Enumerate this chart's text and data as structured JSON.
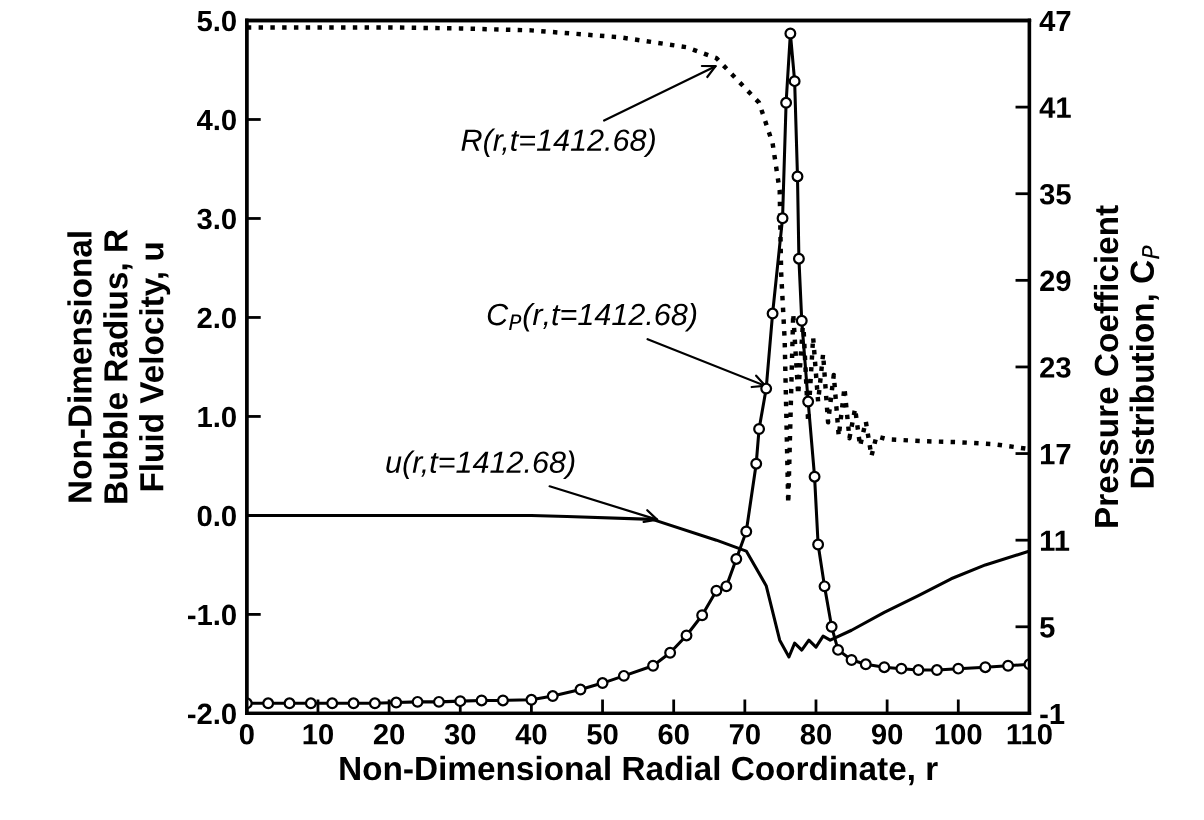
{
  "chart_data": {
    "type": "line",
    "xlabel": "Non-Dimensional Radial Coordinate, r",
    "ylabel": "Non-Dimensional\nBubble Radius, R\nFluid Velocity, u",
    "y2label": "Pressure Coefficient\nDistribution, C$_{P}$",
    "xlim": [
      0,
      110
    ],
    "xticks": [
      0,
      10,
      20,
      30,
      40,
      50,
      60,
      70,
      80,
      90,
      100,
      110
    ],
    "ylim": [
      -2,
      5
    ],
    "yticks": [
      {
        "value": -2,
        "label": "-2.0"
      },
      {
        "value": -1,
        "label": "-1.0"
      },
      {
        "value": 0,
        "label": "0.0"
      },
      {
        "value": 1,
        "label": "1.0"
      },
      {
        "value": 2,
        "label": "2.0"
      },
      {
        "value": 3,
        "label": "3.0"
      },
      {
        "value": 4,
        "label": "4.0"
      },
      {
        "value": 5,
        "label": "5.0"
      }
    ],
    "y2lim": [
      -1,
      47
    ],
    "y2ticks": [
      -1,
      5,
      11,
      17,
      23,
      29,
      35,
      41,
      47
    ],
    "grid": false,
    "legend": false,
    "series": [
      {
        "color": "#000000",
        "line_style": "dotted",
        "marker": "none",
        "x": [
          0,
          10,
          20,
          30,
          40,
          52.5,
          61.8,
          66,
          72,
          73.9,
          74.9,
          75.1,
          75.6,
          76.1,
          76.8,
          77.5,
          78.2,
          78.9,
          79.6,
          80.3,
          81,
          81.7,
          82.5,
          83.2,
          84,
          84.7,
          85.5,
          86.2,
          87,
          87.8,
          88.5,
          90,
          95,
          100,
          105,
          110
        ],
        "values": [
          4.93,
          4.93,
          4.93,
          4.92,
          4.9,
          4.83,
          4.73,
          4.62,
          4.17,
          3.76,
          3.28,
          2.46,
          1.77,
          0.12,
          2.04,
          1.22,
          1.97,
          0.94,
          1.8,
          1.15,
          1.63,
          0.94,
          1.42,
          0.8,
          1.29,
          0.78,
          1.08,
          0.7,
          0.95,
          0.6,
          0.8,
          0.77,
          0.75,
          0.74,
          0.72,
          0.67
        ]
      },
      {
        "color": "#000000",
        "line_style": "solid",
        "marker": "none",
        "x": [
          0,
          10,
          20,
          30,
          40,
          45,
          57,
          66,
          70.2,
          73,
          74.9,
          76.2,
          77,
          78,
          79,
          80,
          81,
          82,
          85,
          89.6,
          94.4,
          99,
          103.8,
          110
        ],
        "values": [
          0,
          0,
          0,
          0,
          0,
          -0.01,
          -0.04,
          -0.25,
          -0.36,
          -0.71,
          -1.26,
          -1.43,
          -1.29,
          -1.36,
          -1.26,
          -1.33,
          -1.22,
          -1.26,
          -1.16,
          -0.98,
          -0.81,
          -0.64,
          -0.5,
          -0.36
        ]
      },
      {
        "color": "#000000",
        "axis": "y2",
        "line_style": "solid",
        "marker": "circle",
        "x": [
          0,
          3,
          6,
          9,
          12,
          15,
          18,
          21,
          24,
          27,
          30,
          33,
          36,
          40,
          43,
          46.9,
          50,
          53,
          57.1,
          59.5,
          61.8,
          64,
          66,
          67.4,
          68.8,
          70.2,
          71.6,
          72,
          73,
          73.9,
          75.3,
          75.8,
          76.4,
          77,
          77.4,
          77.6,
          78,
          78.9,
          79.8,
          80.3,
          81.2,
          82.2,
          83.1,
          85,
          87,
          89.6,
          92,
          94.4,
          97,
          100,
          103.8,
          107,
          110
        ],
        "values": [
          -0.3,
          -0.3,
          -0.3,
          -0.3,
          -0.3,
          -0.3,
          -0.3,
          -0.25,
          -0.2,
          -0.2,
          -0.15,
          -0.1,
          -0.1,
          -0.06,
          0.2,
          0.65,
          1.1,
          1.6,
          2.3,
          3.2,
          4.4,
          5.8,
          7.5,
          7.8,
          9.7,
          11.6,
          16.3,
          18.7,
          21.5,
          26.7,
          33.3,
          41.3,
          46.1,
          42.8,
          36.2,
          30.5,
          26.2,
          20.6,
          15.4,
          10.7,
          7.8,
          5,
          3.4,
          2.7,
          2.4,
          2.2,
          2.1,
          2,
          2,
          2.1,
          2.2,
          2.3,
          2.4
        ]
      }
    ],
    "annotations": [
      {
        "text": "R(r,t=1412.68)",
        "x": 66.2,
        "y": 4.55
      },
      {
        "text": "C$_{P}$(r,t=1412.68)",
        "x": 73.2,
        "y": 1.3
      },
      {
        "text": "u(r,t=1412.68)",
        "x": 58,
        "y": -0.05
      }
    ]
  }
}
